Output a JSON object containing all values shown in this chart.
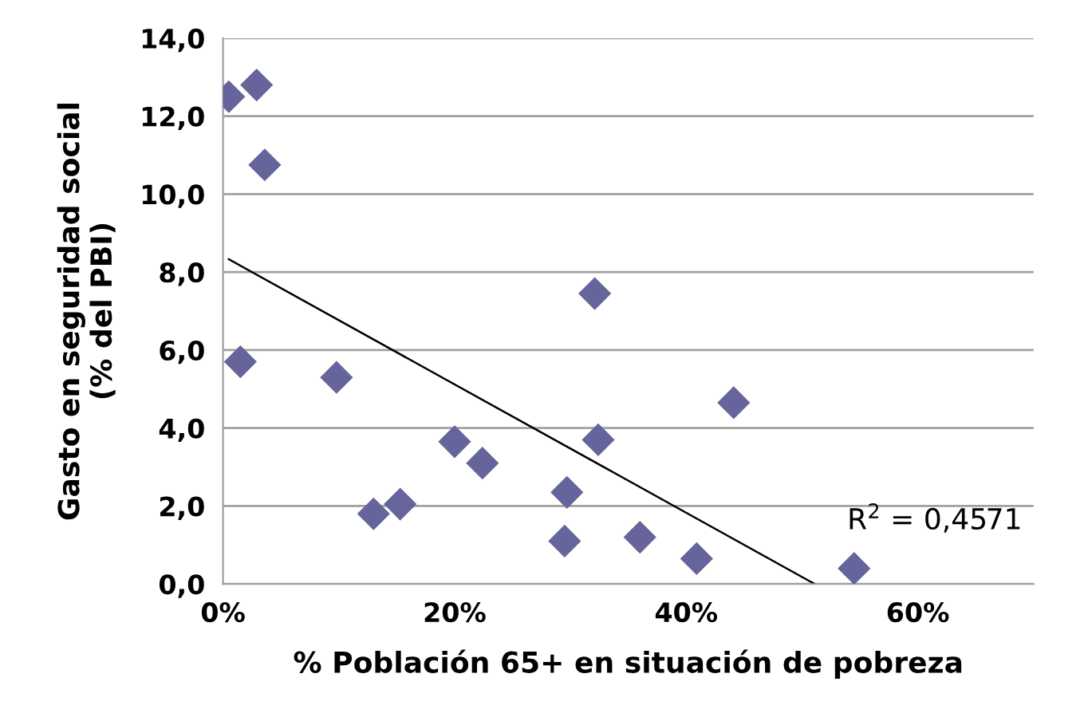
{
  "chart_data": {
    "type": "scatter",
    "xlabel": "% Población 65+ en situación de pobreza",
    "ylabel": "Gasto en seguridad social\n(% del PBI)",
    "series": [
      {
        "color": "#65659b",
        "marker": "diamond",
        "x": [
          0.5,
          2.9,
          3.6,
          1.5,
          9.8,
          13.0,
          15.3,
          20.0,
          22.4,
          29.7,
          29.5,
          32.1,
          32.4,
          36.0,
          40.9,
          44.1,
          54.5
        ],
        "values": [
          12.5,
          12.8,
          10.75,
          5.7,
          5.3,
          1.8,
          2.05,
          3.65,
          3.1,
          2.35,
          1.1,
          7.45,
          3.7,
          1.2,
          0.65,
          4.65,
          0.4
        ]
      },
      {
        "type": "line",
        "color": "#000000",
        "marker": "none",
        "x": [
          0.5,
          51.1
        ],
        "values": [
          8.33,
          0
        ]
      }
    ],
    "annotations": [
      "R$^{2}$ = 0,4571"
    ],
    "xlim": [
      0,
      70
    ],
    "xticks": [
      {
        "value": 0,
        "label": "0%"
      },
      {
        "value": 20,
        "label": "20%"
      },
      {
        "value": 40,
        "label": "40%"
      },
      {
        "value": 60,
        "label": "60%"
      }
    ],
    "ylim": [
      0,
      14
    ],
    "yticks": [
      {
        "value": 0,
        "label": "0,0"
      },
      {
        "value": 2,
        "label": "2,0"
      },
      {
        "value": 4,
        "label": "4,0"
      },
      {
        "value": 6,
        "label": "6,0"
      },
      {
        "value": 8,
        "label": "8,0"
      },
      {
        "value": 10,
        "label": "10,0"
      },
      {
        "value": 12,
        "label": "12,0"
      },
      {
        "value": 14,
        "label": "14,0"
      }
    ],
    "grid": "y"
  }
}
